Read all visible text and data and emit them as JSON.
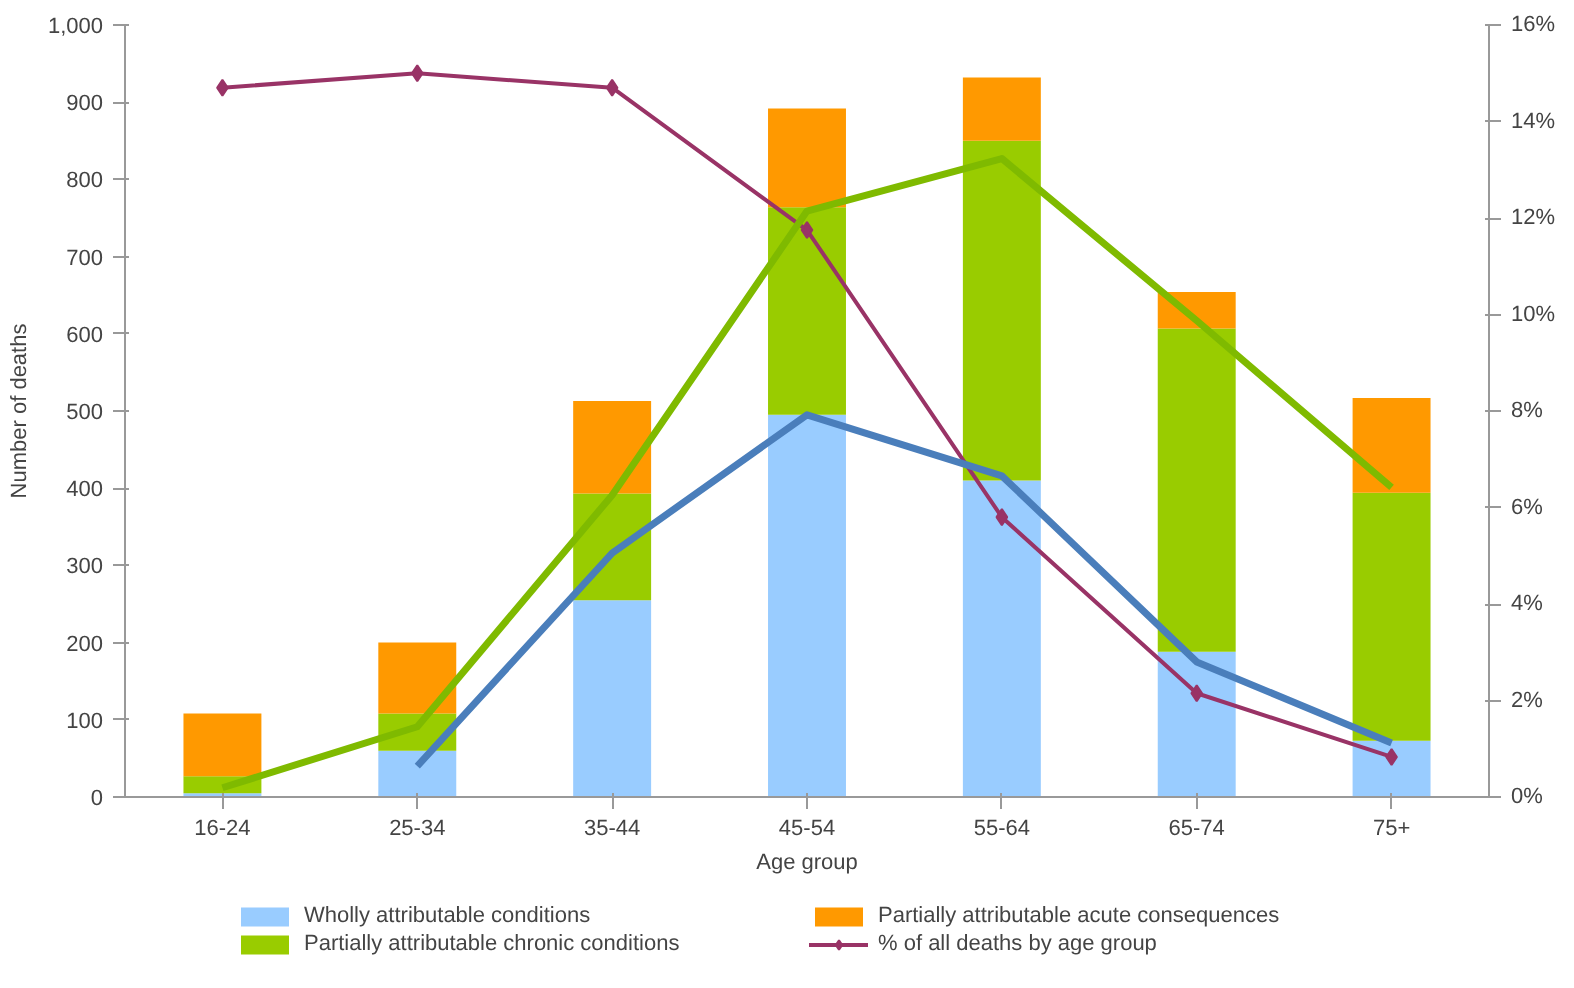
{
  "chart_data": {
    "type": "bar",
    "stacked": true,
    "xlabel": "Age group",
    "ylabel": "Number of deaths",
    "categories": [
      "16-24",
      "25-34",
      "35-44",
      "45-54",
      "55-64",
      "65-74",
      "75+"
    ],
    "series": [
      {
        "name": "Wholly attributable conditions",
        "color": "#99ccff",
        "values": [
          5,
          60,
          255,
          495,
          410,
          188,
          73
        ]
      },
      {
        "name": "Partially attributable chronic conditions",
        "color": "#99cc00",
        "values": [
          22,
          48,
          138,
          269,
          440,
          419,
          321
        ]
      },
      {
        "name": "Partially attributable acute consequences",
        "color": "#ff9900",
        "values": [
          81,
          92,
          120,
          128,
          82,
          47,
          123
        ]
      },
      {
        "name": "% of all deaths by age group",
        "type": "line",
        "axis": "y2",
        "color": "#993366",
        "marker": "diamond",
        "values": [
          14.7,
          15.0,
          14.7,
          11.75,
          5.8,
          2.15,
          0.83
        ]
      },
      {
        "type": "line",
        "color": "#4a7ebb",
        "marker": "none",
        "values": [
          null,
          40,
          316,
          495,
          416,
          175,
          70
        ]
      },
      {
        "type": "line",
        "color": "#7fba00",
        "marker": "none",
        "values": [
          12,
          91,
          391,
          759,
          827,
          617,
          401
        ]
      }
    ],
    "ylim": [
      0,
      1000
    ],
    "yticks": [
      0,
      100,
      200,
      300,
      400,
      500,
      600,
      700,
      800,
      900,
      {
        "value": 1000,
        "label": "1,000"
      }
    ],
    "y2lim": [
      0,
      16
    ],
    "y2ticks": [
      {
        "value": 0,
        "label": "0%"
      },
      {
        "value": 2,
        "label": "2%"
      },
      {
        "value": 4,
        "label": "4%"
      },
      {
        "value": 6,
        "label": "6%"
      },
      {
        "value": 8,
        "label": "8%"
      },
      {
        "value": 10,
        "label": "10%"
      },
      {
        "value": 12,
        "label": "12%"
      },
      {
        "value": 14,
        "label": "14%"
      },
      {
        "value": 16,
        "label": "16%"
      }
    ],
    "grid": false,
    "legend": "bottom"
  }
}
